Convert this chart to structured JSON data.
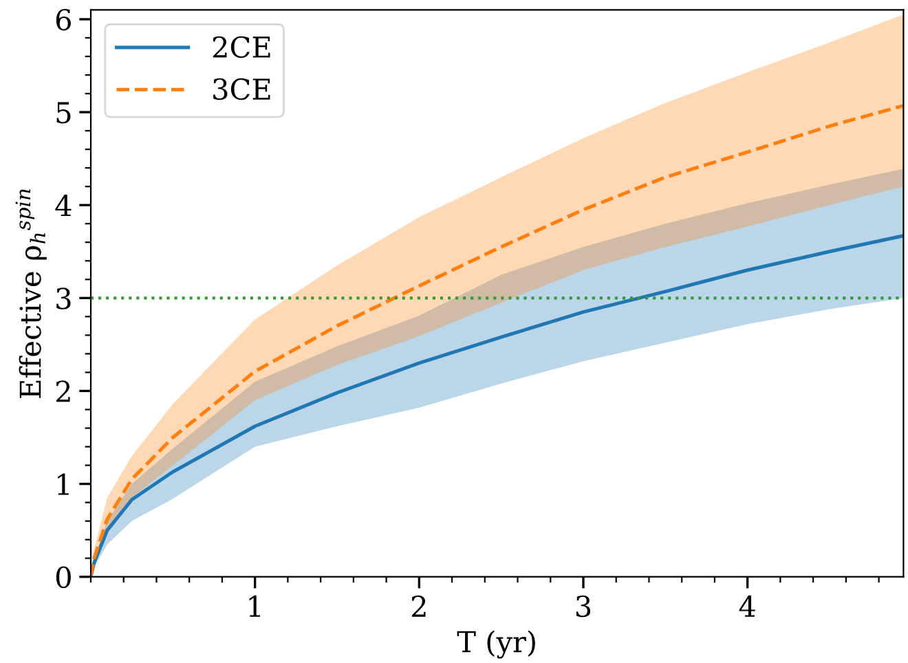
{
  "chart_data": {
    "type": "line",
    "xlabel": "T (yr)",
    "ylabel": "Effective ρ$_{h}$$^{spin}$",
    "xlim": [
      0,
      4.95
    ],
    "ylim": [
      0,
      6.1
    ],
    "xticks": [
      1,
      2,
      3,
      4
    ],
    "yticks": [
      0,
      1,
      2,
      3,
      4,
      5,
      6
    ],
    "x": [
      0,
      0.02,
      0.1,
      0.25,
      0.5,
      1,
      1.5,
      2,
      2.5,
      3,
      3.5,
      4,
      4.5,
      4.95
    ],
    "series": [
      {
        "name": "2CE",
        "color": "#1f77b4",
        "line_style": "solid",
        "values": [
          0,
          0.15,
          0.5,
          0.83,
          1.13,
          1.62,
          1.98,
          2.3,
          2.58,
          2.85,
          3.07,
          3.3,
          3.5,
          3.67
        ],
        "lower": [
          0,
          0.1,
          0.35,
          0.6,
          0.84,
          1.4,
          1.62,
          1.82,
          2.08,
          2.32,
          2.52,
          2.72,
          2.88,
          3.0
        ],
        "upper": [
          0,
          0.2,
          0.6,
          1.0,
          1.38,
          2.1,
          2.48,
          2.81,
          3.25,
          3.55,
          3.8,
          4.02,
          4.22,
          4.39
        ]
      },
      {
        "name": "3CE",
        "color": "#ff7f0e",
        "line_style": "dashed",
        "values": [
          0,
          0.2,
          0.62,
          1.05,
          1.5,
          2.21,
          2.7,
          3.13,
          3.55,
          3.95,
          4.3,
          4.57,
          4.85,
          5.07
        ],
        "lower": [
          0,
          0.15,
          0.5,
          0.85,
          1.2,
          1.9,
          2.28,
          2.59,
          2.95,
          3.3,
          3.55,
          3.77,
          4.0,
          4.2
        ],
        "upper": [
          0,
          0.3,
          0.85,
          1.3,
          1.86,
          2.77,
          3.35,
          3.87,
          4.3,
          4.72,
          5.1,
          5.43,
          5.75,
          6.05
        ]
      }
    ],
    "ref_lines": [
      {
        "axis": "y",
        "value": 3,
        "color": "#2ca02c",
        "line_style": "dotted"
      }
    ],
    "legend": "top left",
    "grid": false
  }
}
